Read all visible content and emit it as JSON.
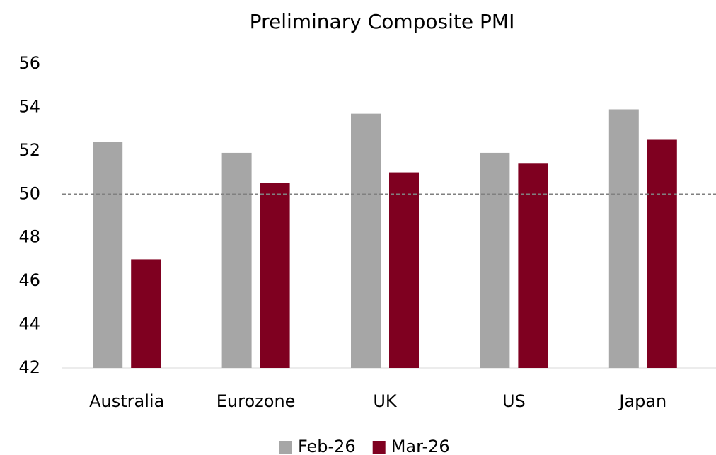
{
  "chart_data": {
    "type": "bar",
    "title": "Preliminary Composite PMI",
    "categories": [
      "Australia",
      "Eurozone",
      "UK",
      "US",
      "Japan"
    ],
    "series": [
      {
        "name": "Feb-26",
        "color": "#a6a6a6",
        "values": [
          52.4,
          51.9,
          53.7,
          51.9,
          53.9
        ]
      },
      {
        "name": "Mar-26",
        "color": "#7f0020",
        "values": [
          47.0,
          50.5,
          51.0,
          51.4,
          52.5
        ]
      }
    ],
    "ylim": [
      42,
      56
    ],
    "yticks": [
      42,
      44,
      46,
      48,
      50,
      52,
      54,
      56
    ],
    "reference_line": 50,
    "grid": false,
    "legend": "bottom"
  }
}
